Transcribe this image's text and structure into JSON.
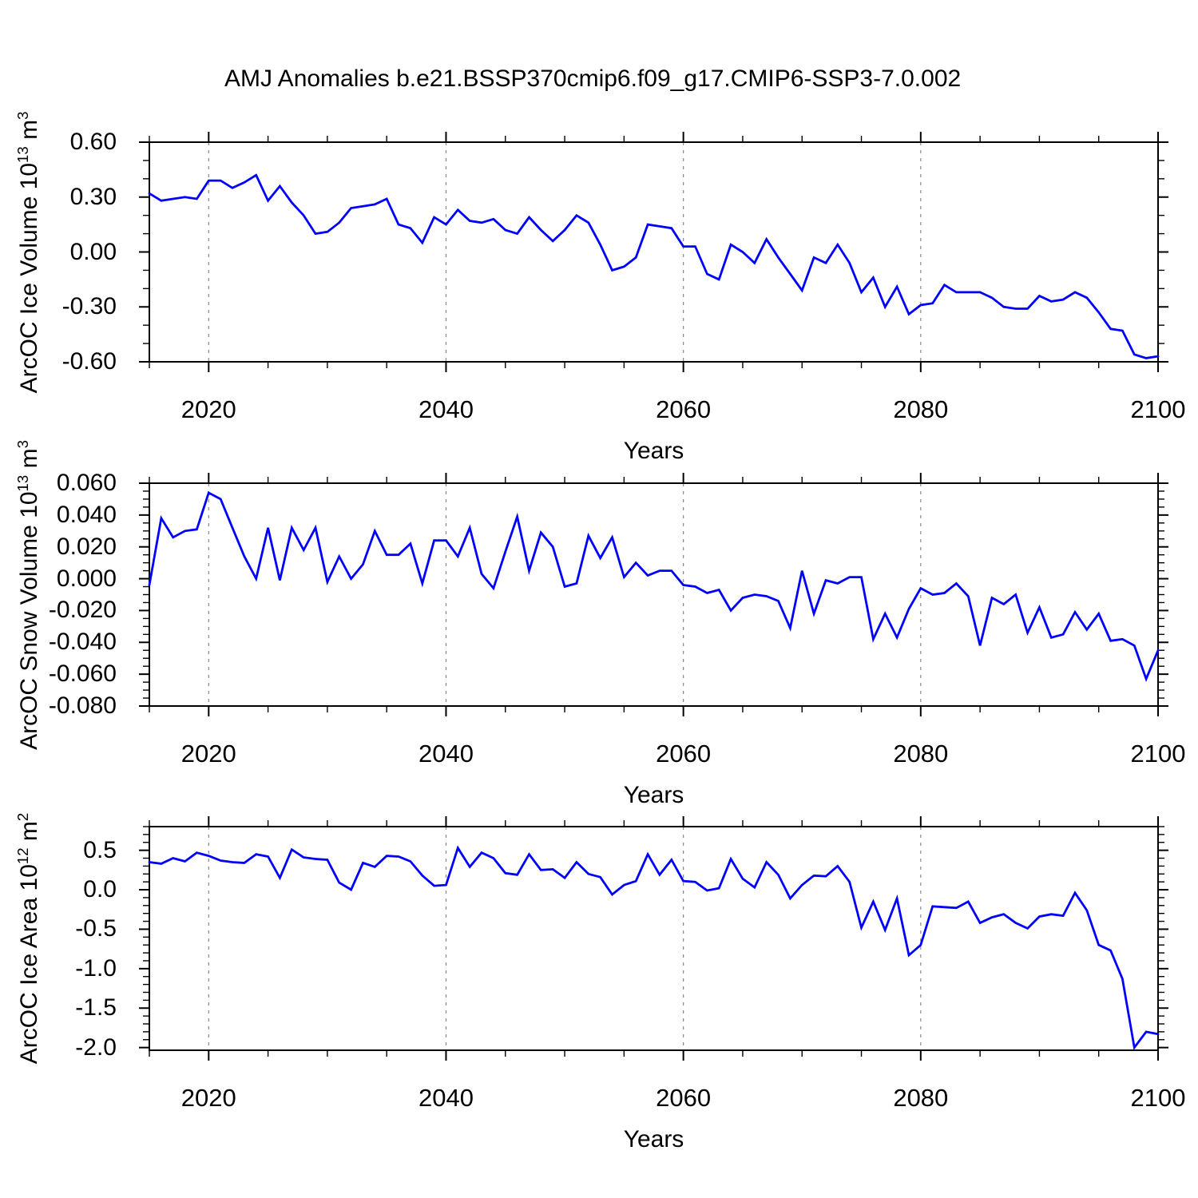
{
  "title": "AMJ Anomalies b.e21.BSSP370cmip6.f09_g17.CMIP6-SSP3-7.0.002",
  "colors": {
    "line": "#0000ff",
    "grid": "#888888",
    "axis": "#000000",
    "background": "#ffffff",
    "text": "#000000"
  },
  "x_axis": {
    "label": "Years",
    "tick_labels": [
      "2020",
      "2040",
      "2060",
      "2080",
      "2100"
    ],
    "tick_values": [
      2020,
      2040,
      2060,
      2080,
      2100
    ],
    "minor_step": 5,
    "range": [
      2015,
      2100
    ],
    "gridline_years": [
      2020,
      2040,
      2060,
      2080
    ]
  },
  "years": [
    2015,
    2016,
    2017,
    2018,
    2019,
    2020,
    2021,
    2022,
    2023,
    2024,
    2025,
    2026,
    2027,
    2028,
    2029,
    2030,
    2031,
    2032,
    2033,
    2034,
    2035,
    2036,
    2037,
    2038,
    2039,
    2040,
    2041,
    2042,
    2043,
    2044,
    2045,
    2046,
    2047,
    2048,
    2049,
    2050,
    2051,
    2052,
    2053,
    2054,
    2055,
    2056,
    2057,
    2058,
    2059,
    2060,
    2061,
    2062,
    2063,
    2064,
    2065,
    2066,
    2067,
    2068,
    2069,
    2070,
    2071,
    2072,
    2073,
    2074,
    2075,
    2076,
    2077,
    2078,
    2079,
    2080,
    2081,
    2082,
    2083,
    2084,
    2085,
    2086,
    2087,
    2088,
    2089,
    2090,
    2091,
    2092,
    2093,
    2094,
    2095,
    2096,
    2097,
    2098,
    2099,
    2100
  ],
  "chart_data": [
    {
      "id": "ice-volume",
      "type": "line",
      "ylabel": {
        "base": "ArcOC Ice Volume 10",
        "exp": "13",
        "unit": " m",
        "unit_exp": "3"
      },
      "ylim": [
        -0.6,
        0.6
      ],
      "y_major": {
        "values": [
          0.6,
          0.3,
          0.0,
          -0.3,
          -0.6
        ],
        "labels": [
          "0.60",
          "0.30",
          "0.00",
          "-0.30",
          "-0.60"
        ]
      },
      "y_minor_step": 0.1,
      "grid": true,
      "legend": "none",
      "values": [
        0.32,
        0.28,
        0.29,
        0.3,
        0.29,
        0.39,
        0.39,
        0.35,
        0.38,
        0.42,
        0.28,
        0.36,
        0.27,
        0.2,
        0.1,
        0.11,
        0.16,
        0.24,
        0.25,
        0.26,
        0.29,
        0.15,
        0.13,
        0.05,
        0.19,
        0.15,
        0.23,
        0.17,
        0.16,
        0.18,
        0.12,
        0.1,
        0.19,
        0.12,
        0.06,
        0.12,
        0.2,
        0.16,
        0.04,
        -0.1,
        -0.08,
        -0.03,
        0.15,
        0.14,
        0.13,
        0.03,
        0.03,
        -0.12,
        -0.15,
        0.04,
        0.0,
        -0.06,
        0.07,
        -0.03,
        -0.12,
        -0.21,
        -0.03,
        -0.06,
        0.04,
        -0.06,
        -0.22,
        -0.14,
        -0.3,
        -0.19,
        -0.34,
        -0.29,
        -0.28,
        -0.18,
        -0.22,
        -0.22,
        -0.22,
        -0.25,
        -0.3,
        -0.31,
        -0.31,
        -0.24,
        -0.27,
        -0.26,
        -0.22,
        -0.25,
        -0.33,
        -0.42,
        -0.43,
        -0.56,
        -0.58,
        -0.57
      ]
    },
    {
      "id": "snow-volume",
      "type": "line",
      "ylabel": {
        "base": "ArcOC Snow Volume 10",
        "exp": "13",
        "unit": " m",
        "unit_exp": "3"
      },
      "ylim": [
        -0.08,
        0.06
      ],
      "y_major": {
        "values": [
          0.06,
          0.04,
          0.02,
          0.0,
          -0.02,
          -0.04,
          -0.06,
          -0.08
        ],
        "labels": [
          "0.060",
          "0.040",
          "0.020",
          "0.000",
          "-0.020",
          "-0.040",
          "-0.060",
          "-0.080"
        ]
      },
      "y_minor_step": 0.005,
      "grid": true,
      "legend": "none",
      "values": [
        -0.004,
        0.038,
        0.026,
        0.03,
        0.031,
        0.054,
        0.05,
        0.032,
        0.014,
        0.0,
        0.032,
        -0.001,
        0.032,
        0.018,
        0.032,
        -0.002,
        0.014,
        0.0,
        0.009,
        0.03,
        0.015,
        0.015,
        0.022,
        -0.003,
        0.024,
        0.024,
        0.014,
        0.032,
        0.003,
        -0.006,
        0.017,
        0.039,
        0.005,
        0.029,
        0.02,
        -0.005,
        -0.003,
        0.027,
        0.013,
        0.026,
        0.001,
        0.01,
        0.002,
        0.005,
        0.005,
        -0.004,
        -0.005,
        -0.009,
        -0.007,
        -0.02,
        -0.012,
        -0.01,
        -0.011,
        -0.014,
        -0.031,
        0.005,
        -0.022,
        -0.001,
        -0.003,
        0.001,
        0.001,
        -0.038,
        -0.022,
        -0.037,
        -0.019,
        -0.006,
        -0.01,
        -0.009,
        -0.003,
        -0.011,
        -0.042,
        -0.012,
        -0.016,
        -0.01,
        -0.034,
        -0.018,
        -0.037,
        -0.035,
        -0.021,
        -0.032,
        -0.022,
        -0.039,
        -0.038,
        -0.042,
        -0.063,
        -0.045
      ]
    },
    {
      "id": "ice-area",
      "type": "line",
      "ylabel": {
        "base": "ArcOC Ice Area 10",
        "exp": "12",
        "unit": " m",
        "unit_exp": "2"
      },
      "ylim": [
        -2.034,
        0.8
      ],
      "y_major": {
        "values": [
          0.5,
          0.0,
          -0.5,
          -1.0,
          -1.5,
          -2.0
        ],
        "labels": [
          "0.5",
          "0.0",
          "-0.5",
          "-1.0",
          "-1.5",
          "-2.0"
        ]
      },
      "y_minor_step": 0.1,
      "grid": true,
      "legend": "none",
      "values": [
        0.35,
        0.33,
        0.4,
        0.36,
        0.47,
        0.43,
        0.37,
        0.35,
        0.34,
        0.45,
        0.42,
        0.15,
        0.51,
        0.41,
        0.39,
        0.38,
        0.09,
        0.0,
        0.34,
        0.29,
        0.43,
        0.42,
        0.36,
        0.18,
        0.05,
        0.06,
        0.53,
        0.29,
        0.47,
        0.4,
        0.21,
        0.19,
        0.45,
        0.25,
        0.26,
        0.15,
        0.35,
        0.2,
        0.16,
        -0.06,
        0.06,
        0.11,
        0.45,
        0.19,
        0.38,
        0.11,
        0.1,
        -0.01,
        0.02,
        0.39,
        0.14,
        0.03,
        0.35,
        0.19,
        -0.11,
        0.06,
        0.18,
        0.17,
        0.3,
        0.1,
        -0.48,
        -0.15,
        -0.51,
        -0.11,
        -0.83,
        -0.7,
        -0.21,
        -0.22,
        -0.23,
        -0.15,
        -0.42,
        -0.35,
        -0.31,
        -0.42,
        -0.49,
        -0.34,
        -0.31,
        -0.33,
        -0.04,
        -0.26,
        -0.7,
        -0.77,
        -1.13,
        -2.0,
        -1.8,
        -1.83
      ]
    }
  ]
}
